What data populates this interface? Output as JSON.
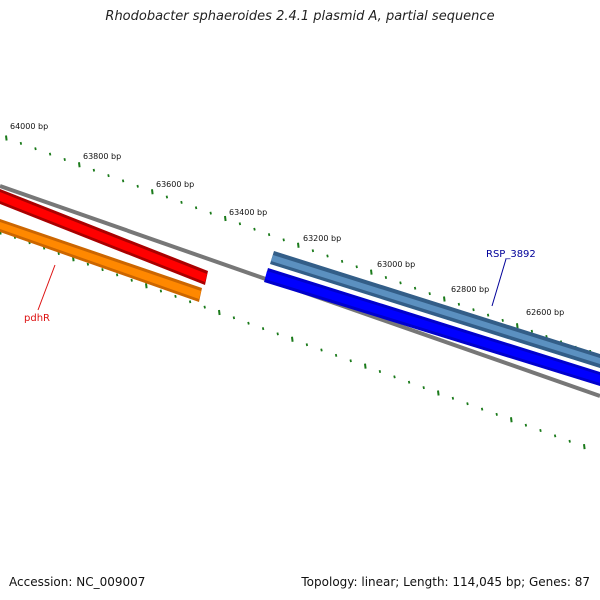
{
  "title": "Rhodobacter sphaeroides 2.4.1 plasmid A, partial sequence",
  "footer": {
    "accession": "Accession: NC_009007",
    "summary": "Topology: linear; Length: 114,045 bp; Genes: 87"
  },
  "scale_labels": [
    "64000 bp",
    "63800 bp",
    "63600 bp",
    "63400 bp",
    "63200 bp",
    "63000 bp",
    "62800 bp",
    "62600 bp"
  ],
  "genes": [
    {
      "label": "pdhR",
      "color": "#dd1111"
    },
    {
      "label": "RSP_3892",
      "color": "#000099"
    }
  ],
  "colors": {
    "tick": "#1a7a1a",
    "backbone": "#7a7a7a",
    "red_feature": "#ff0000",
    "orange_feature": "#ff8800",
    "steel_feature": "#4a7fb0",
    "blue_feature": "#0000ee"
  }
}
